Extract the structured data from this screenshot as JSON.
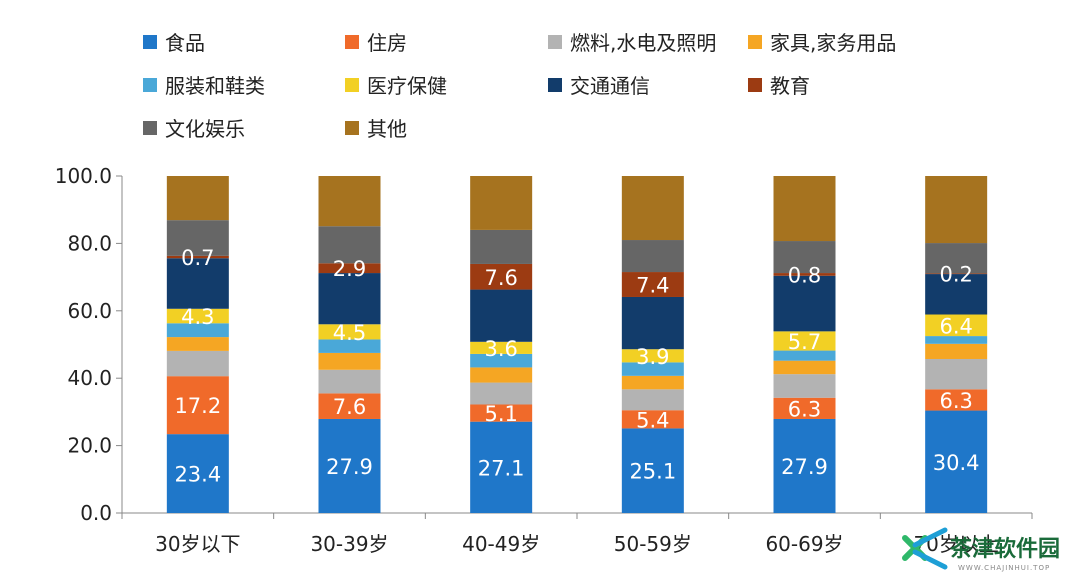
{
  "chart_data": {
    "type": "bar",
    "stacked": true,
    "ylim": [
      0,
      100
    ],
    "yticks": [
      "0.0",
      "20.0",
      "40.0",
      "60.0",
      "80.0",
      "100.0"
    ],
    "categories": [
      "30岁以下",
      "30-39岁",
      "40-49岁",
      "50-59岁",
      "60-69岁",
      "70岁以上"
    ],
    "legend_position": "top",
    "series": [
      {
        "name": "食品",
        "color": "#1f77c9",
        "values": [
          23.4,
          27.9,
          27.1,
          25.1,
          27.9,
          30.4
        ]
      },
      {
        "name": "住房",
        "color": "#f06a2a",
        "values": [
          17.2,
          7.6,
          5.1,
          5.4,
          6.3,
          6.3
        ]
      },
      {
        "name": "燃料,水电及照明",
        "color": "#b3b3b3",
        "values": [
          7.5,
          7.0,
          6.5,
          6.2,
          7.0,
          9.0
        ]
      },
      {
        "name": "家具,家务用品",
        "color": "#f5a623",
        "values": [
          4.1,
          5.0,
          4.5,
          4.0,
          4.0,
          4.5
        ]
      },
      {
        "name": "服装和鞋类",
        "color": "#4aa8d8",
        "values": [
          4.1,
          4.0,
          4.0,
          4.0,
          3.0,
          2.3
        ]
      },
      {
        "name": "医疗保健",
        "color": "#f2d024",
        "values": [
          4.3,
          4.5,
          3.6,
          3.9,
          5.7,
          6.4
        ]
      },
      {
        "name": "交通通信",
        "color": "#123c6b",
        "values": [
          15.0,
          15.2,
          15.5,
          15.5,
          16.5,
          12.0
        ]
      },
      {
        "name": "教育",
        "color": "#9c3b12",
        "values": [
          0.7,
          2.9,
          7.6,
          7.4,
          0.8,
          0.2
        ]
      },
      {
        "name": "文化娱乐",
        "color": "#666666",
        "values": [
          10.6,
          11.0,
          10.1,
          9.5,
          9.5,
          9.0
        ]
      },
      {
        "name": "其他",
        "color": "#a6731f",
        "values": [
          13.1,
          14.9,
          16.0,
          19.0,
          19.3,
          19.9
        ]
      }
    ],
    "data_labels": [
      [
        "23.4",
        "17.2",
        "",
        "",
        "",
        "4.3",
        "",
        "0.7",
        "",
        ""
      ],
      [
        "27.9",
        "7.6",
        "",
        "",
        "",
        "4.5",
        "",
        "2.9",
        "",
        ""
      ],
      [
        "27.1",
        "5.1",
        "",
        "",
        "",
        "3.6",
        "",
        "7.6",
        "",
        ""
      ],
      [
        "25.1",
        "5.4",
        "",
        "",
        "",
        "3.9",
        "",
        "7.4",
        "",
        ""
      ],
      [
        "27.9",
        "6.3",
        "",
        "",
        "",
        "5.7",
        "",
        "0.8",
        "",
        ""
      ],
      [
        "30.4",
        "6.3",
        "",
        "",
        "",
        "6.4",
        "",
        "0.2",
        "",
        ""
      ]
    ]
  },
  "watermark": {
    "title": "茶津软件园",
    "subtitle": "WWW.CHAJINHUI.TOP"
  }
}
